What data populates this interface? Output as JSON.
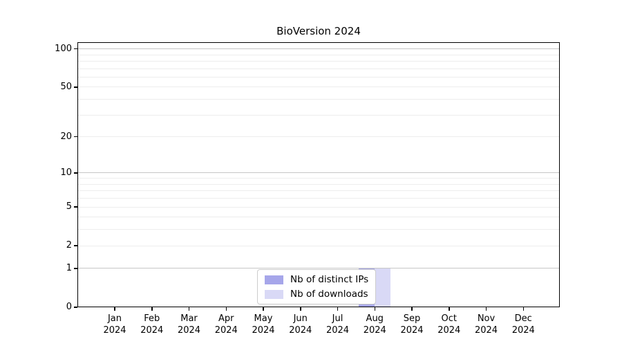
{
  "chart_data": {
    "type": "bar",
    "title": "BioVersion 2024",
    "categories": [
      "Jan 2024",
      "Feb 2024",
      "Mar 2024",
      "Apr 2024",
      "May 2024",
      "Jun 2024",
      "Jul 2024",
      "Aug 2024",
      "Sep 2024",
      "Oct 2024",
      "Nov 2024",
      "Dec 2024"
    ],
    "series": [
      {
        "name": "Nb of distinct IPs",
        "color": "#a6a6ea",
        "values": [
          0,
          0,
          0,
          0,
          0,
          0,
          0,
          1,
          0,
          0,
          0,
          0
        ]
      },
      {
        "name": "Nb of downloads",
        "color": "#d9d9f6",
        "values": [
          0,
          0,
          0,
          0,
          0,
          0,
          0,
          1,
          0,
          0,
          0,
          0
        ]
      }
    ],
    "xlabel": "",
    "ylabel": "",
    "yscale": "log1p",
    "ylim": [
      0,
      100
    ],
    "y_tick_labels": [
      "0",
      "1",
      "2",
      "5",
      "10",
      "20",
      "50",
      "100"
    ],
    "y_minor_gridlines": [
      2,
      3,
      4,
      5,
      6,
      7,
      8,
      9,
      20,
      30,
      40,
      50,
      60,
      70,
      80,
      90
    ],
    "y_major_gridlines": [
      1,
      10,
      100
    ],
    "grid": "horizontal",
    "legend_position": "bottom-center-inside",
    "colors": {
      "major_grid": "#c6c6c6",
      "minor_grid": "#ededed",
      "spine": "#000000",
      "legend_border": "#cccccc"
    }
  }
}
